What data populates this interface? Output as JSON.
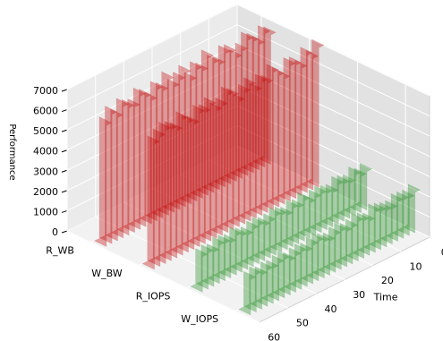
{
  "chart_data": {
    "type": "bar3d",
    "x": [
      0,
      2,
      4,
      6,
      8,
      10,
      12,
      14,
      16,
      18,
      20,
      22,
      24,
      26,
      28,
      30,
      32,
      34,
      36,
      38,
      40,
      42,
      44,
      46,
      48,
      50,
      52,
      54,
      56,
      58
    ],
    "xlabel": "Time",
    "zlabel": "Performance",
    "xlim": [
      0,
      60
    ],
    "xticks": [
      0,
      10,
      20,
      30,
      40,
      50,
      60
    ],
    "zlim": [
      0,
      7000
    ],
    "zticks": [
      0,
      1000,
      2000,
      3000,
      4000,
      5000,
      6000,
      7000
    ],
    "grid": true,
    "series": [
      {
        "name": "R_WB",
        "color": "#c00000",
        "values": [
          6400,
          6600,
          6200,
          6500,
          6700,
          6300,
          6100,
          6500,
          6600,
          6200,
          6400,
          6800,
          6300,
          6500,
          6100,
          6600,
          6400,
          6200,
          6700,
          6300,
          6500,
          6100,
          6400,
          6600,
          6200,
          6300,
          6500,
          6100,
          6400,
          6000
        ]
      },
      {
        "name": "W_BW",
        "color": "#c00000",
        "values": [
          6900,
          6500,
          6800,
          6300,
          6600,
          6700,
          6200,
          6500,
          6800,
          6400,
          6600,
          6300,
          6700,
          6500,
          6200,
          6600,
          6800,
          6400,
          6300,
          6700,
          6500,
          6600,
          6200,
          6400,
          6700,
          6300,
          6500,
          6600,
          6400,
          6200
        ]
      },
      {
        "name": "R_IOPS",
        "color": "#1e8a1e",
        "values": [
          1900,
          1800,
          2000,
          1750,
          1850,
          1950,
          1700,
          1800,
          1900,
          1850,
          1750,
          2000,
          1800,
          1900,
          1700,
          1850,
          1950,
          1800,
          1750,
          1900,
          1850,
          1700,
          1800,
          1950,
          1750,
          1850,
          1900,
          1700,
          1800,
          1750
        ]
      },
      {
        "name": "W_IOPS",
        "color": "#1e8a1e",
        "values": [
          2000,
          1850,
          1900,
          1950,
          1750,
          1800,
          1900,
          2000,
          1700,
          1850,
          1950,
          1800,
          1750,
          1900,
          1850,
          1700,
          1800,
          1950,
          1900,
          1750,
          1850,
          1800,
          1700,
          1900,
          1850,
          1750,
          1800,
          1700,
          1850,
          1750
        ]
      }
    ]
  }
}
